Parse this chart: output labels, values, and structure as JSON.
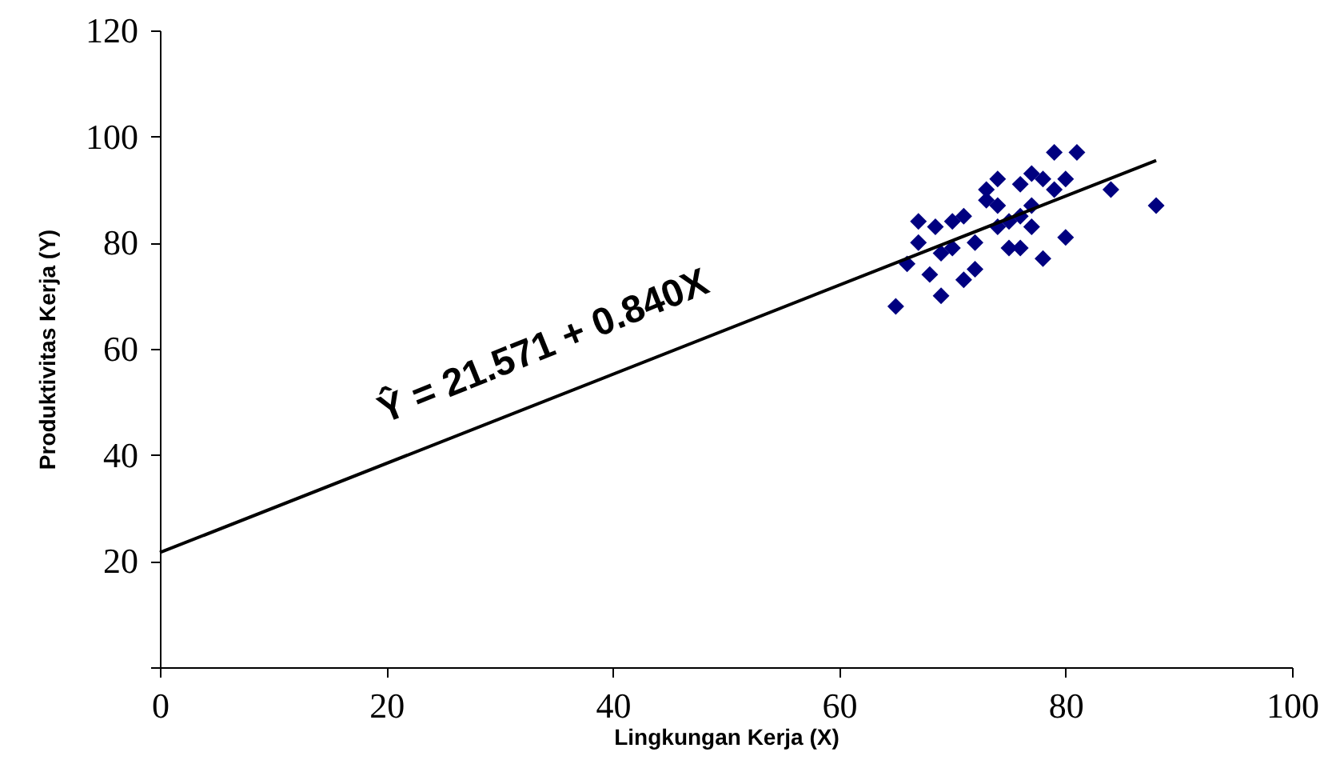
{
  "chart_data": {
    "type": "scatter",
    "xlabel": "Lingkungan Kerja (X)",
    "ylabel": "Produktivitas Kerja  (Y)",
    "xlim": [
      0,
      100
    ],
    "xticks": [
      0,
      20,
      40,
      60,
      80,
      100
    ],
    "ylim": [
      0,
      120
    ],
    "yticks": [
      {
        "value": 0,
        "label": null
      },
      20,
      40,
      60,
      80,
      100,
      120
    ],
    "grid": false,
    "series": [
      {
        "marker": "diamond",
        "color": "#000080",
        "x": [
          65,
          66,
          67,
          68.5,
          67,
          68,
          69,
          69,
          70,
          70,
          71,
          71,
          72,
          72,
          73,
          74,
          73,
          74,
          74,
          75,
          75,
          76,
          76,
          77,
          78,
          77,
          76,
          77,
          78,
          79,
          81,
          79,
          80,
          80,
          84,
          88
        ],
        "values": [
          68,
          76,
          84,
          83,
          80,
          74,
          70,
          78,
          79,
          84,
          85,
          73,
          75,
          80,
          90,
          92,
          88,
          87,
          83,
          84,
          79,
          79,
          91,
          93,
          92,
          87,
          85,
          83,
          77,
          97,
          97,
          90,
          92,
          81,
          90,
          87
        ]
      },
      {
        "type": "line",
        "color": "#000000",
        "line_style": "solid",
        "x": [
          0,
          88
        ],
        "values": [
          21.6,
          95.5
        ]
      }
    ],
    "annotations": [
      "Ŷ = 21.571 + 0.840X"
    ]
  }
}
